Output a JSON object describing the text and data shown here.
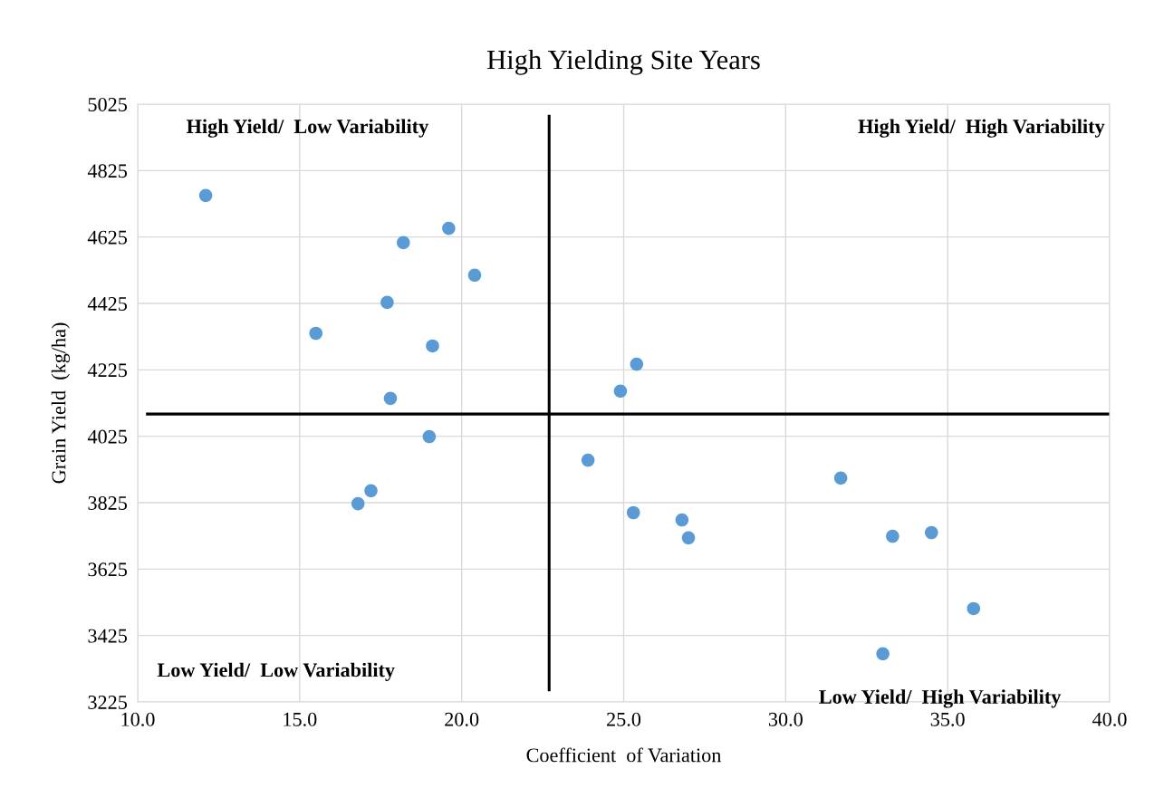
{
  "chart_data": {
    "type": "scatter",
    "title": "High Yielding Site Years",
    "xlabel": "Coefficient  of Variation",
    "ylabel": "Grain Yield  (kg/ha)",
    "x": [
      12.1,
      19.6,
      18.2,
      20.4,
      17.7,
      15.5,
      19.1,
      25.4,
      24.9,
      17.8,
      19.0,
      23.9,
      31.7,
      17.2,
      16.8,
      25.3,
      26.8,
      27.0,
      33.3,
      34.5,
      35.8,
      33.0
    ],
    "series": [
      {
        "color": "#5b9bd5",
        "values": [
          4750,
          4651,
          4608,
          4510,
          4428,
          4335,
          4297,
          4242,
          4161,
          4139,
          4024,
          3953,
          3899,
          3861,
          3822,
          3795,
          3773,
          3719,
          3724,
          3735,
          3506,
          3370
        ]
      }
    ],
    "xlim": [
      10.0,
      40.0
    ],
    "xticks": [
      {
        "value": 10,
        "label": "10.0"
      },
      {
        "value": 15,
        "label": "15.0"
      },
      {
        "value": 20,
        "label": "20.0"
      },
      {
        "value": 25,
        "label": "25.0"
      },
      {
        "value": 30,
        "label": "30.0"
      },
      {
        "value": 35,
        "label": "35.0"
      },
      {
        "value": 40,
        "label": "40.0"
      }
    ],
    "ylim": [
      3225,
      5025
    ],
    "yticks": [
      3225,
      3425,
      3625,
      3825,
      4025,
      4225,
      4425,
      4625,
      4825,
      5025
    ],
    "ref_lines": [
      {
        "axis": "x",
        "value": 22.7,
        "color": "#000000"
      },
      {
        "axis": "y",
        "value": 4092,
        "color": "#000000"
      }
    ],
    "annotations": [
      "High Yield/  Low Variability",
      "High Yield/  High Variability",
      "Low Yield/  Low Variability",
      "Low Yield/  High Variability"
    ],
    "grid": true,
    "marker": "circle",
    "legend": false
  }
}
